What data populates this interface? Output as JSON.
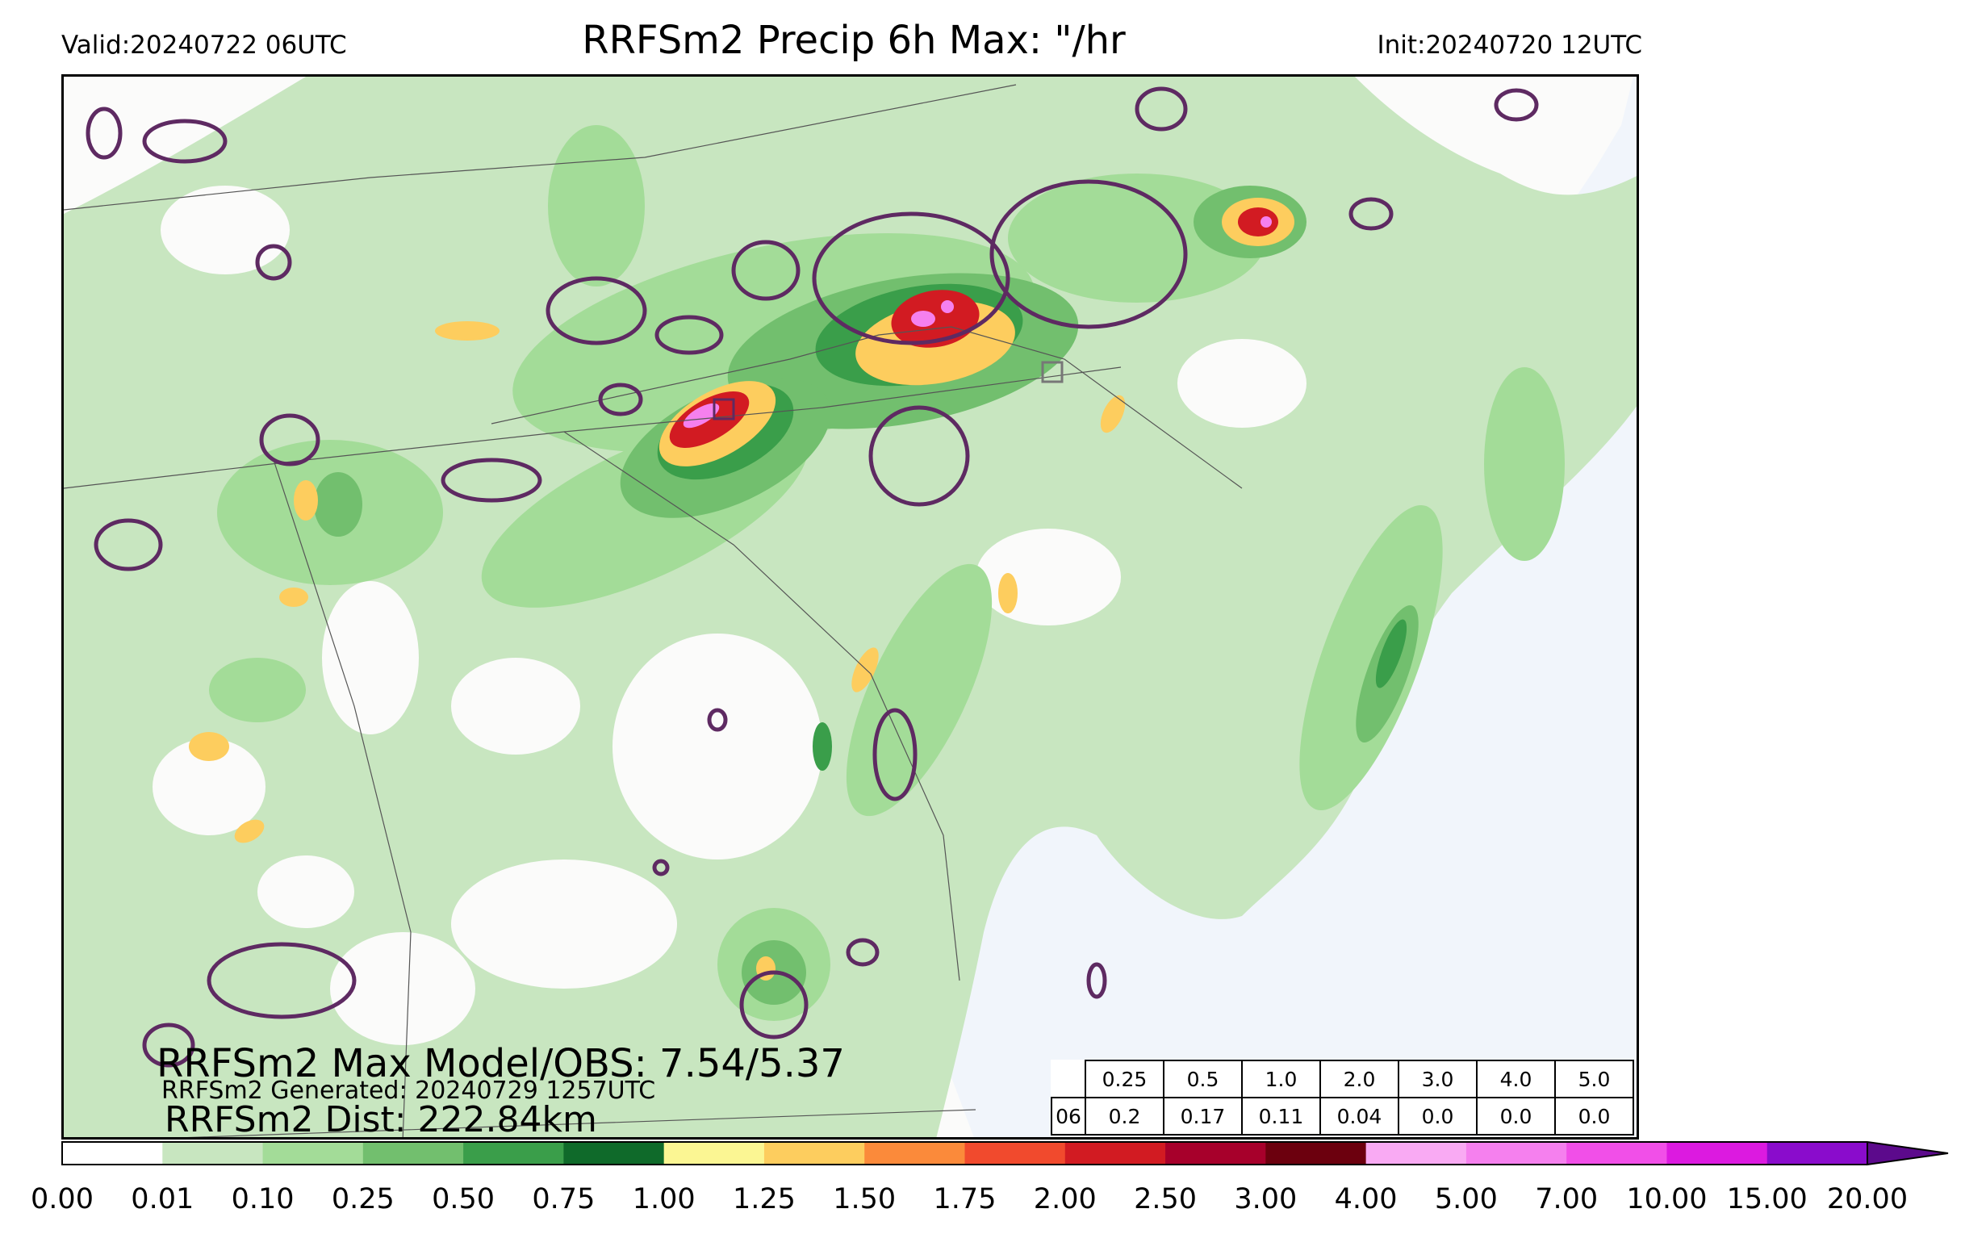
{
  "header": {
    "valid": "Valid:20240722 06UTC",
    "title": "RRFSm2 Precip 6h Max: \"/hr",
    "init": "Init:20240720 12UTC"
  },
  "stats": {
    "max_model_obs": "RRFSm2 Max Model/OBS: 7.54/5.37",
    "generated": "RRFSm2 Generated: 20240729 1257UTC",
    "dist": "RRFSm2 Dist: 222.84km"
  },
  "threshold_table": {
    "hour": "06",
    "thresholds": [
      "0.25",
      "0.5",
      "1.0",
      "2.0",
      "3.0",
      "4.0",
      "5.0"
    ],
    "values": [
      "0.2",
      "0.17",
      "0.11",
      "0.04",
      "0.0",
      "0.0",
      "0.0"
    ]
  },
  "colorbar": {
    "ticks": [
      "0.00",
      "0.01",
      "0.10",
      "0.25",
      "0.50",
      "0.75",
      "1.00",
      "1.25",
      "1.50",
      "1.75",
      "2.00",
      "2.50",
      "3.00",
      "4.00",
      "5.00",
      "7.00",
      "10.00",
      "15.00",
      "20.00"
    ],
    "colors": [
      "#ffffff",
      "#c8e6c0",
      "#a3dc98",
      "#72bf6e",
      "#3a9e4a",
      "#0f6a2a",
      "#fbf693",
      "#fdcd5e",
      "#fb8a3a",
      "#f14a2d",
      "#d21b22",
      "#a7002b",
      "#6c000e",
      "#f9aaf3",
      "#f580ee",
      "#f14fe8",
      "#dc1ae0",
      "#8a0ccc"
    ],
    "extend_color": "#5c0a8c"
  },
  "map": {
    "ocean_color": "#f1f5fb",
    "land_color": "#fbfbfa",
    "obs_contour_color": "#5e2a62"
  }
}
